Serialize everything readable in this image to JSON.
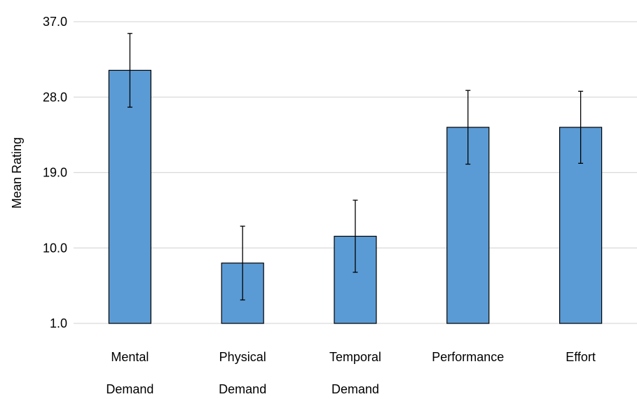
{
  "chart_data": {
    "type": "bar",
    "title": "",
    "xlabel": "",
    "ylabel": "Mean Rating",
    "ylim": [
      1.0,
      37.0
    ],
    "yticks": [
      "1.0",
      "10.0",
      "19.0",
      "28.0",
      "37.0"
    ],
    "ytick_values": [
      1,
      10,
      19,
      28,
      37
    ],
    "grid": true,
    "categories": [
      [
        "Mental",
        "Demand"
      ],
      [
        "Physical",
        "Demand"
      ],
      [
        "Temporal",
        "Demand"
      ],
      [
        "Performance"
      ],
      [
        "Effort"
      ]
    ],
    "values": [
      31.2,
      8.2,
      11.4,
      24.4,
      24.4
    ],
    "error": [
      4.4,
      4.4,
      4.3,
      4.4,
      4.3
    ],
    "bar_color": "#5b9bd5",
    "bar_edge_color": "#000000",
    "grid_color": "#d9d9d9"
  }
}
